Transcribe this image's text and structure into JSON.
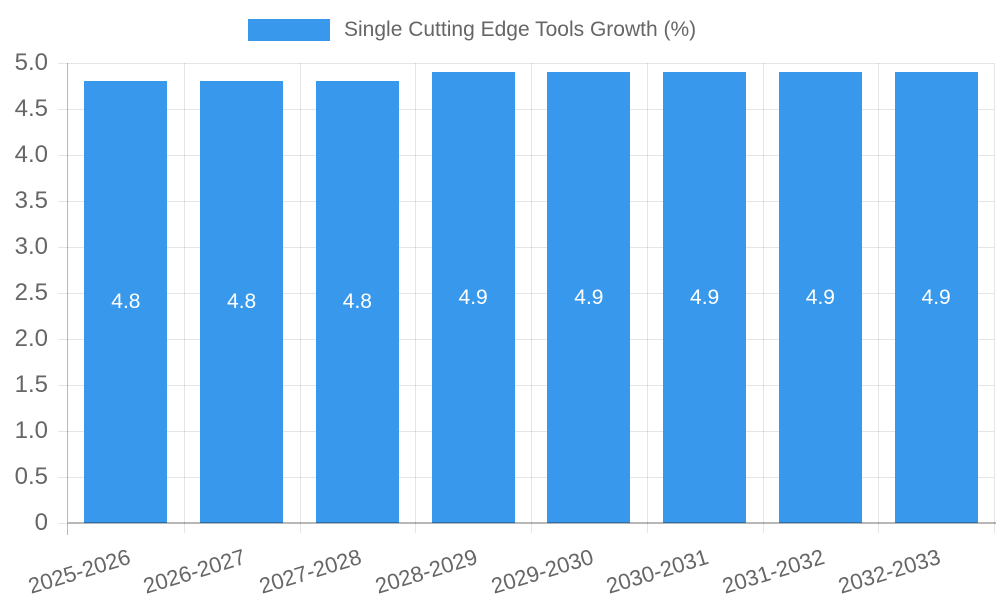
{
  "legend": {
    "label": "Single Cutting Edge Tools Growth (%)"
  },
  "chart_data": {
    "type": "bar",
    "title": "Single Cutting Edge Tools Growth (%)",
    "categories": [
      "2025-2026",
      "2026-2027",
      "2027-2028",
      "2028-2029",
      "2029-2030",
      "2030-2031",
      "2031-2032",
      "2032-2033"
    ],
    "values": [
      4.8,
      4.8,
      4.8,
      4.9,
      4.9,
      4.9,
      4.9,
      4.9
    ],
    "value_labels": [
      "4.8",
      "4.8",
      "4.8",
      "4.9",
      "4.9",
      "4.9",
      "4.9",
      "4.9"
    ],
    "xlabel": "",
    "ylabel": "",
    "ylim": [
      0,
      5
    ],
    "ytick_step": 0.5,
    "ytick_labels": [
      "0",
      "0.5",
      "1.0",
      "1.5",
      "2.0",
      "2.5",
      "3.0",
      "3.5",
      "4.0",
      "4.5",
      "5.0"
    ],
    "legend_position": "top",
    "grid": true,
    "colors": {
      "bar": "#3899ec",
      "grid": "rgba(0,0,0,0.1)",
      "axis": "rgba(0,0,0,0.28)",
      "tick_text": "#666666",
      "legend_text": "#666666",
      "value_label_text": "#ffffff",
      "background": "#ffffff"
    }
  }
}
